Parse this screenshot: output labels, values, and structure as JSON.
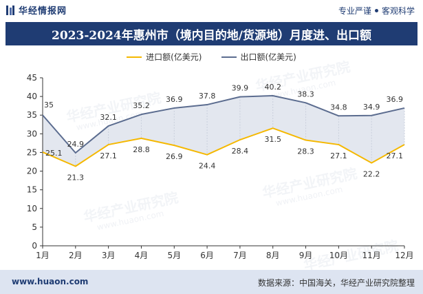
{
  "header": {
    "brand_name": "华经情报网",
    "tagline_left": "专业严谨",
    "tagline_right": "客观科学"
  },
  "title": "2023-2024年惠州市（境内目的地/货源地）月度进、出口额",
  "watermark": {
    "text": "华经产业研究院",
    "url": "www.huaon.com"
  },
  "footer": {
    "website": "www.huaon.com",
    "source": "数据来源：中国海关，华经产业研究院整理"
  },
  "colors": {
    "brand": "#1f3c73",
    "import_line": "#f5b800",
    "export_line": "#5b6c8f",
    "band_fill": "#e3e7ef",
    "footer_bg": "#dde4f1"
  },
  "chart_data": {
    "type": "line",
    "categories": [
      "1月",
      "2月",
      "3月",
      "4月",
      "5月",
      "6月",
      "7月",
      "8月",
      "9月",
      "10月",
      "11月",
      "12月"
    ],
    "series": [
      {
        "name": "进口额(亿美元)",
        "values": [
          25.1,
          21.3,
          27.1,
          28.8,
          26.9,
          24.4,
          28.4,
          31.5,
          28.3,
          27.1,
          22.2,
          27.1
        ],
        "color": "#f5b800"
      },
      {
        "name": "出口额(亿美元)",
        "values": [
          35,
          24.9,
          32.1,
          35.2,
          36.9,
          37.8,
          39.9,
          40.2,
          38.3,
          34.8,
          34.9,
          36.9
        ],
        "color": "#5b6c8f"
      }
    ],
    "ylim": [
      0,
      45
    ],
    "yticks": [
      "0",
      "5",
      "10",
      "15",
      "20",
      "25",
      "30",
      "35",
      "40",
      "45"
    ],
    "legend_position": "top-center",
    "grid": false
  }
}
